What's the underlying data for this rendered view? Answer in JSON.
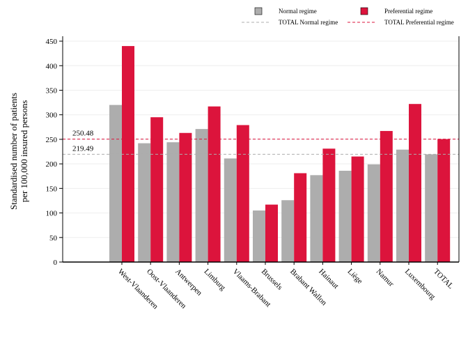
{
  "chart_data": {
    "type": "bar",
    "ylabel_lines": [
      "Standardised number of patients",
      "per 100,000 insured persons"
    ],
    "categories": [
      "West-Vlaanderen",
      "Oost-Vlaanderen",
      "Antwerpen",
      "Limburg",
      "Vlaams-Brabant",
      "Brussels",
      "Brabant Wallon",
      "Hainaut",
      "Liège",
      "Namur",
      "Luxembourg",
      "TOTAL"
    ],
    "series": [
      {
        "name": "Normal regime",
        "color": "#adadad",
        "values": [
          320,
          242,
          244,
          271,
          211,
          105,
          126,
          177,
          186,
          199,
          229,
          219.49
        ]
      },
      {
        "name": "Preferential regime",
        "color": "#dc143c",
        "values": [
          440,
          295,
          263,
          317,
          279,
          117,
          181,
          231,
          215,
          267,
          322,
          250.48
        ]
      }
    ],
    "reference_lines": [
      {
        "name": "TOTAL Normal regime",
        "value": 219.49,
        "label": "219.49",
        "color": "#adadad"
      },
      {
        "name": "TOTAL Preferential regime",
        "value": 250.48,
        "label": "250.48",
        "color": "#dc143c"
      }
    ],
    "ylim": [
      0,
      460
    ],
    "yticks": [
      0,
      50,
      100,
      150,
      200,
      250,
      300,
      350,
      400,
      450
    ],
    "grid": true,
    "legend_position": "top"
  }
}
